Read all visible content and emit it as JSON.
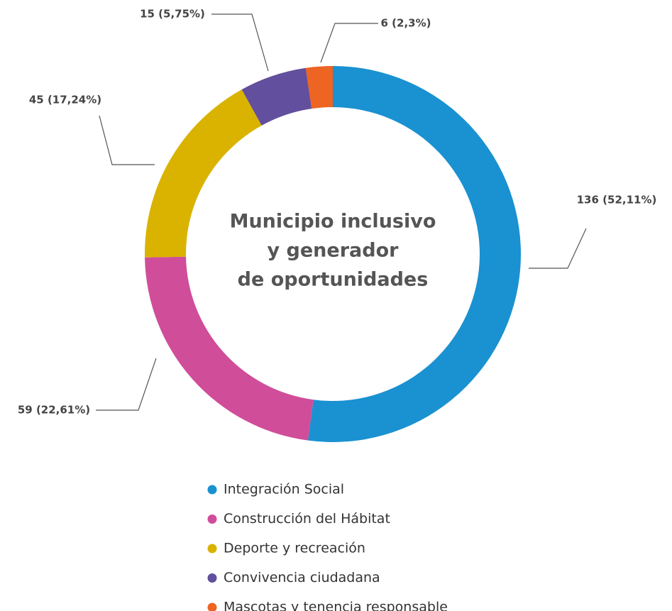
{
  "chart_data": {
    "type": "donut",
    "title": [
      "Municipio inclusivo",
      "y generador",
      "de oportunidades"
    ],
    "categories": [
      "Integración Social",
      "Construcción del Hábitat",
      "Deporte y recreación",
      "Convivencia ciudadana",
      "Mascotas y tenencia responsable"
    ],
    "values": [
      136,
      59,
      45,
      15,
      6
    ],
    "value_labels": [
      "136 (52,11%)",
      "59 (22,61%)",
      "45 (17,24%)",
      "15 (5,75%)",
      "6 (2,3%)"
    ],
    "colors": [
      "#1a91d1",
      "#d04d9a",
      "#d9b300",
      "#624f9d",
      "#ee6422"
    ],
    "legend": "bottom"
  }
}
